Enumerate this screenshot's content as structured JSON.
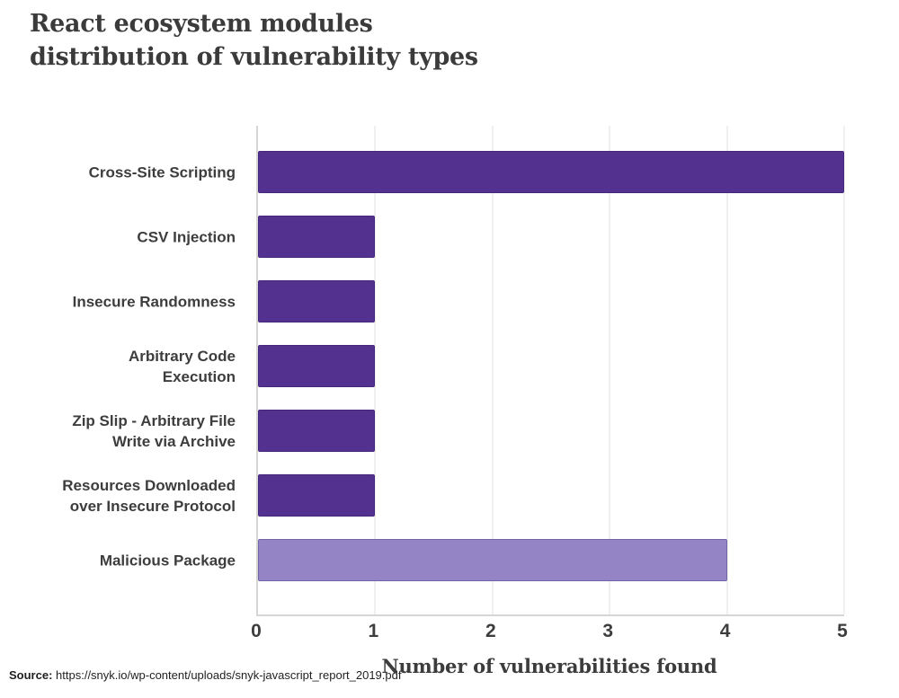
{
  "title": {
    "line1": "React ecosystem modules",
    "line2": "distribution of vulnerability types"
  },
  "source": {
    "label": "Source:",
    "url": "https://snyk.io/wp-content/uploads/snyk-javascript_report_2019.pdf"
  },
  "colors": {
    "bar_primary": "#52318F",
    "bar_highlight": "#9484C6",
    "text": "#3D3D3D",
    "gridline": "#F0F0F0",
    "axis": "#D6D6D6"
  },
  "chart_data": {
    "type": "bar",
    "orientation": "horizontal",
    "title": "React ecosystem modules distribution of vulnerability types",
    "categories": [
      "Cross-Site Scripting",
      "CSV Injection",
      "Insecure Randomness",
      "Arbitrary Code\nExecution",
      "Zip Slip - Arbitrary File\nWrite via Archive",
      "Resources Downloaded\nover Insecure Protocol",
      "Malicious Package"
    ],
    "values": [
      5,
      1,
      1,
      1,
      1,
      1,
      4
    ],
    "bar_colors": [
      "#52318F",
      "#52318F",
      "#52318F",
      "#52318F",
      "#52318F",
      "#52318F",
      "#9484C6"
    ],
    "xlabel": "Number of vulnerabilities found",
    "ylabel": "",
    "xlim": [
      0,
      5
    ],
    "xticks": [
      0,
      1,
      2,
      3,
      4,
      5
    ],
    "grid": true,
    "legend": false
  }
}
